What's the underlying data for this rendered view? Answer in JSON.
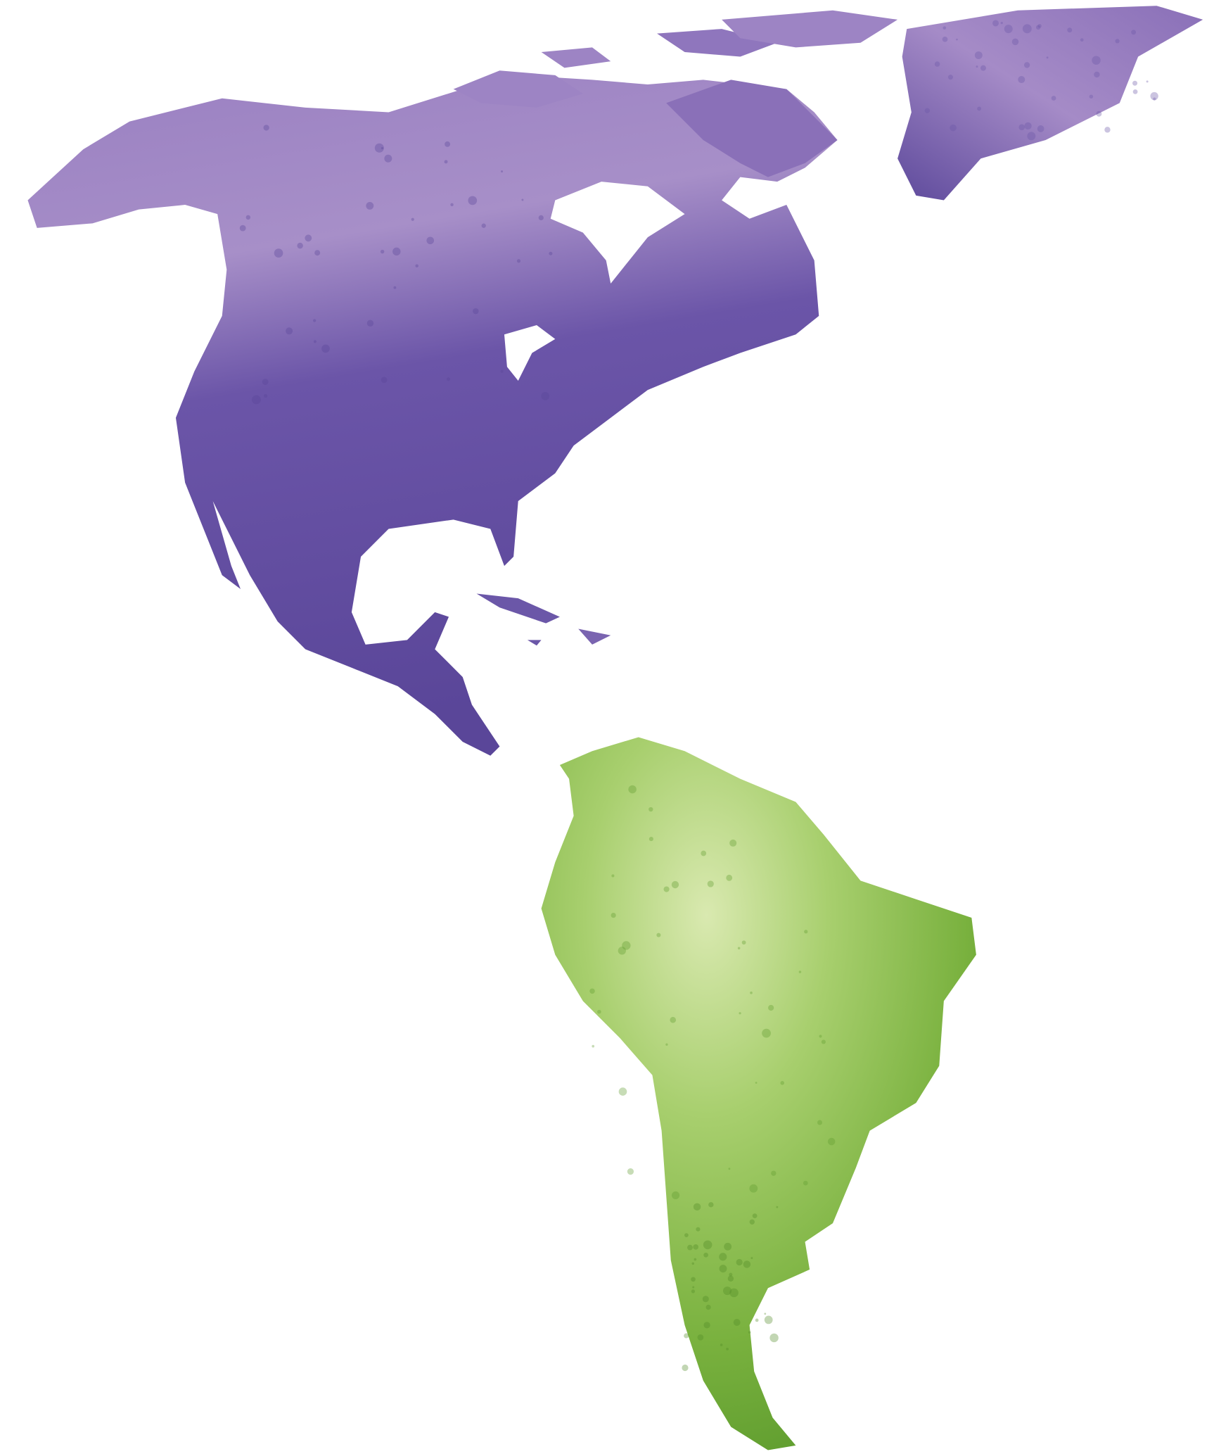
{
  "map": {
    "style": "watercolor",
    "background": "#ffffff",
    "regions": [
      {
        "id": "north-america",
        "color_light": "#a78fc8",
        "color_dark": "#5a4699"
      },
      {
        "id": "greenland",
        "color_light": "#a58bc7",
        "color_dark": "#6a55a6"
      },
      {
        "id": "caribbean",
        "color_light": "#8a72b8",
        "color_dark": "#6b57a8"
      },
      {
        "id": "south-america",
        "color_light": "#d9e9b0",
        "color_dark": "#62a030"
      }
    ]
  }
}
